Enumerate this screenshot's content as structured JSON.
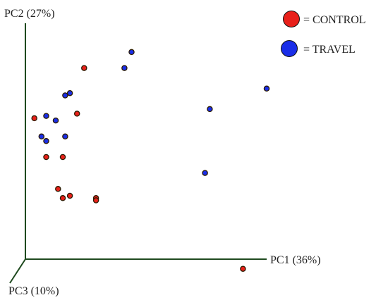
{
  "chart_data": {
    "type": "scatter",
    "projection": "3d-pca",
    "axes": {
      "pc1": {
        "label": "PC1 (36%)"
      },
      "pc2": {
        "label": "PC2 (27%)"
      },
      "pc3": {
        "label": "PC3 (10%)"
      }
    },
    "legend": {
      "placement": "top-right",
      "items": [
        {
          "label": "= CONTROL",
          "color": "#e8201a"
        },
        {
          "label": "= TRAVEL",
          "color": "#1a2ee8"
        }
      ]
    },
    "colors": {
      "axis": "#1f4a1f",
      "marker_outline": "#2a1a00"
    },
    "series": [
      {
        "group": "CONTROL",
        "color": "#e8201a",
        "points": [
          {
            "x": 0.23,
            "y": 0.85
          },
          {
            "x": 0.02,
            "y": 0.63
          },
          {
            "x": 0.2,
            "y": 0.65
          },
          {
            "x": 0.07,
            "y": 0.46
          },
          {
            "x": 0.14,
            "y": 0.46
          },
          {
            "x": 0.12,
            "y": 0.32
          },
          {
            "x": 0.14,
            "y": 0.28
          },
          {
            "x": 0.17,
            "y": 0.29
          },
          {
            "x": 0.28,
            "y": 0.28
          },
          {
            "x": 0.28,
            "y": 0.27
          },
          {
            "x": 0.9,
            "y": -0.03
          }
        ]
      },
      {
        "group": "TRAVEL",
        "color": "#1a2ee8",
        "points": [
          {
            "x": 0.43,
            "y": 0.92
          },
          {
            "x": 0.4,
            "y": 0.85
          },
          {
            "x": 0.17,
            "y": 0.74
          },
          {
            "x": 0.15,
            "y": 0.73
          },
          {
            "x": 0.07,
            "y": 0.64
          },
          {
            "x": 0.11,
            "y": 0.62
          },
          {
            "x": 0.05,
            "y": 0.55
          },
          {
            "x": 0.07,
            "y": 0.53
          },
          {
            "x": 0.15,
            "y": 0.55
          },
          {
            "x": 0.76,
            "y": 0.67
          },
          {
            "x": 1.0,
            "y": 0.76
          },
          {
            "x": 0.74,
            "y": 0.39
          }
        ]
      }
    ]
  }
}
